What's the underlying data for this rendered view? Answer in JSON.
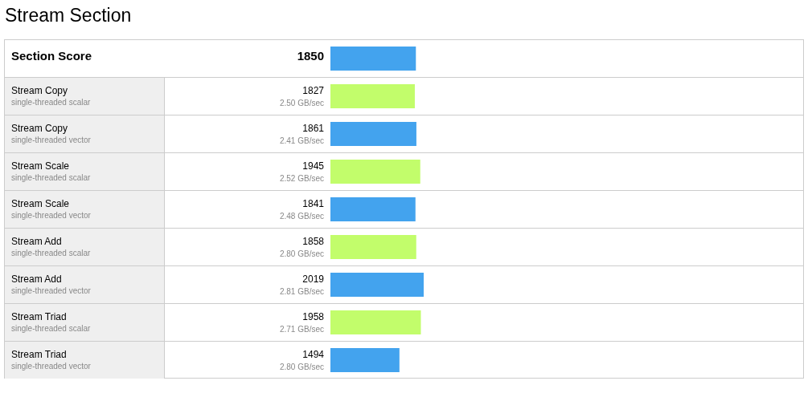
{
  "chart_data": {
    "type": "bar",
    "orientation": "horizontal",
    "title": "Stream Section",
    "categories": [
      "Section Score",
      "Stream Copy\nsingle-threaded scalar",
      "Stream Copy\nsingle-threaded vector",
      "Stream Scale\nsingle-threaded scalar",
      "Stream Scale\nsingle-threaded vector",
      "Stream Add\nsingle-threaded scalar",
      "Stream Add\nsingle-threaded vector",
      "Stream Triad\nsingle-threaded scalar",
      "Stream Triad\nsingle-threaded vector"
    ],
    "values": [
      1850,
      1827,
      1861,
      1945,
      1841,
      1858,
      2019,
      1958,
      1494
    ],
    "colors": [
      "#43a3ee",
      "#c2fd6b",
      "#43a3ee",
      "#c2fd6b",
      "#43a3ee",
      "#c2fd6b",
      "#43a3ee",
      "#c2fd6b",
      "#43a3ee"
    ],
    "value_labels": [
      "1850",
      "1827\n2.50 GB/sec",
      "1861\n2.41 GB/sec",
      "1945\n2.52 GB/sec",
      "1841\n2.48 GB/sec",
      "1858\n2.80 GB/sec",
      "2019\n2.81 GB/sec",
      "1958\n2.71 GB/sec",
      "1494\n2.80 GB/sec"
    ],
    "tick_labels": "y"
  }
}
